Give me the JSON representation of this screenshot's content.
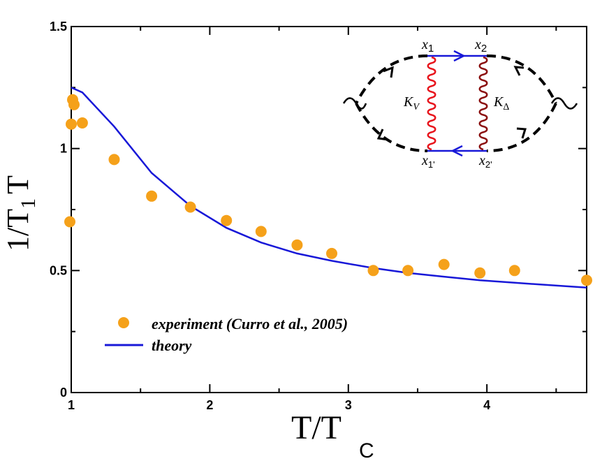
{
  "chart_data": {
    "type": "scatter",
    "xlabel_main": "T/T",
    "xlabel_sub": "C",
    "ylabel_pre": "1/T",
    "ylabel_sub": "1",
    "ylabel_post": "T",
    "xlim": [
      1.0,
      4.72
    ],
    "ylim": [
      0,
      1.5
    ],
    "x_ticks": [
      1,
      2,
      3,
      4
    ],
    "x_tick_labels": [
      "1",
      "2",
      "3",
      "4"
    ],
    "y_ticks": [
      0,
      0.5,
      1,
      1.5
    ],
    "y_tick_labels": [
      "0",
      "0.5",
      "1",
      "1.5"
    ],
    "grid": false,
    "legend_position": "bottom-left",
    "series": [
      {
        "name": "experiment (Curro et al., 2005)",
        "kind": "scatter",
        "color": "#f5a11a",
        "x": [
          0.99,
          1.0,
          1.01,
          1.02,
          1.08,
          1.31,
          1.58,
          1.86,
          2.12,
          2.37,
          2.63,
          2.88,
          3.18,
          3.43,
          3.69,
          3.95,
          4.2,
          4.72
        ],
        "y": [
          0.7,
          1.1,
          1.2,
          1.18,
          1.105,
          0.955,
          0.805,
          0.76,
          0.705,
          0.66,
          0.605,
          0.57,
          0.5,
          0.5,
          0.525,
          0.49,
          0.5,
          0.46
        ]
      },
      {
        "name": "theory",
        "kind": "line",
        "color": "#1818d8",
        "x": [
          1.0,
          1.08,
          1.31,
          1.58,
          1.86,
          2.12,
          2.37,
          2.63,
          2.88,
          3.18,
          3.43,
          3.69,
          3.95,
          4.2,
          4.72
        ],
        "y": [
          1.25,
          1.23,
          1.09,
          0.9,
          0.765,
          0.675,
          0.615,
          0.57,
          0.54,
          0.51,
          0.49,
          0.475,
          0.46,
          0.45,
          0.43
        ]
      }
    ]
  },
  "inset_diagram": {
    "label_x1": "x",
    "label_x1_sub": "1",
    "label_x2": "x",
    "label_x2_sub": "2",
    "label_x1p": "x",
    "label_x1p_sub": "1'",
    "label_x2p": "x",
    "label_x2p_sub": "2'",
    "label_kv": "K",
    "label_kv_sub": "V",
    "label_kd": "K",
    "label_kd_sub": "Δ",
    "colors": {
      "propagator": "#1818d8",
      "kv_line": "#e8141c",
      "kd_line": "#8b1010",
      "dashed": "#000000"
    }
  }
}
